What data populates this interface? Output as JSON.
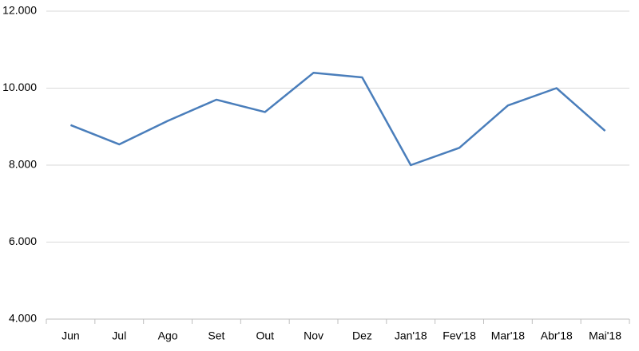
{
  "chart_data": {
    "type": "line",
    "categories": [
      "Jun",
      "Jul",
      "Ago",
      "Set",
      "Out",
      "Nov",
      "Dez",
      "Jan'18",
      "Fev'18",
      "Mar'18",
      "Abr'18",
      "Mai'18"
    ],
    "series": [
      {
        "color": "#4a7ebb",
        "values": [
          9040,
          8540,
          9150,
          9700,
          9380,
          10400,
          10280,
          8000,
          8450,
          9550,
          10000,
          8890
        ]
      }
    ],
    "ylim": [
      4000,
      12000
    ],
    "yticks": [
      {
        "value": 4000,
        "label": "4.000"
      },
      {
        "value": 6000,
        "label": "6.000"
      },
      {
        "value": 8000,
        "label": "8.000"
      },
      {
        "value": 10000,
        "label": "10.000"
      },
      {
        "value": 12000,
        "label": "12.000"
      }
    ],
    "grid": true
  }
}
